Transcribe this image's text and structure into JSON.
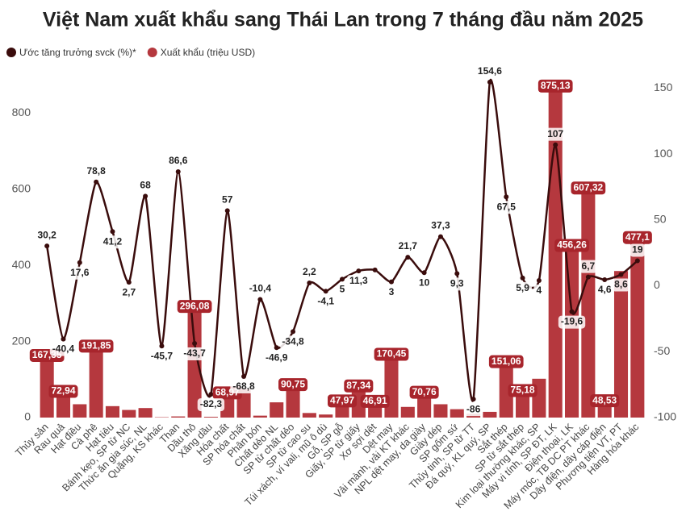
{
  "chart_data": {
    "type": "bar-line",
    "title": "Việt Nam xuất khẩu sang Thái Lan trong 7 tháng đầu năm 2025",
    "categories": [
      "Thủy sản",
      "Rau quả",
      "Hạt điều",
      "Cà phê",
      "Hạt tiêu",
      "Bánh kẹo, SP từ NC",
      "Thức ăn gia súc, NL",
      "Quặng, KS khác",
      "Than",
      "Dầu thô",
      "Xăng dầu",
      "Hóa chất",
      "SP hóa chất",
      "Phân bón",
      "Chất dẻo NL",
      "SP từ chất dẻo",
      "SP từ cao su",
      "Túi xách, ví vali, mũ ô dù",
      "Gỗ, SP gỗ",
      "Giấy, SP từ giấy",
      "Xơ sợi dệt",
      "Dệt may",
      "Vải mành, vải KT khác",
      "NPL dệt may, da giày",
      "Giày dép",
      "SP gốm sứ",
      "Thủy tinh, SP từ TT",
      "Đá quý, KL quý, SP",
      "Sắt thép",
      "SP từ sắt thép",
      "Kim loại thường khác, SP",
      "Máy vi tính, SP ĐT, LK",
      "Điện thoại, LK",
      "Máy móc, TB DC PT khác",
      "Dây điện, dây cáp điện",
      "Phương tiện VT, PT",
      "Hàng hóa khác"
    ],
    "series": [
      {
        "name": "Xuất khẩu (triệu USD)",
        "type": "bar",
        "color": "#b5383e",
        "values": [
          167.35,
          72.94,
          35,
          191.85,
          30,
          20,
          25,
          1,
          3,
          296.08,
          2,
          68.97,
          75,
          5,
          40,
          90.75,
          12,
          8,
          47.97,
          87.34,
          46.91,
          170.45,
          28,
          70.76,
          35,
          22,
          10,
          15,
          151.06,
          75.18,
          102,
          875.13,
          456.26,
          607.32,
          48.53,
          385,
          477.1
        ],
        "value_labels": [
          "167,35",
          "72,94",
          null,
          "191,85",
          null,
          null,
          null,
          null,
          null,
          "296,08",
          null,
          "68,97",
          null,
          null,
          null,
          "90,75",
          null,
          null,
          "47,97",
          "87,34",
          "46,91",
          "170,45",
          null,
          "70,76",
          null,
          null,
          null,
          null,
          "151,06",
          "75,18",
          null,
          "875,13",
          "456,26",
          "607,32",
          "48,53",
          null,
          "477,1"
        ]
      },
      {
        "name": "Ước tăng trưởng svck (%)*",
        "type": "line",
        "axis": "y2",
        "color": "#3a0c0c",
        "values": [
          30.2,
          -40.4,
          17.6,
          78.8,
          41.2,
          2.7,
          68,
          -45.7,
          86.6,
          -43.7,
          -82.3,
          57,
          -68.8,
          -10.4,
          -46.9,
          -34.8,
          2.2,
          -4.1,
          5,
          11.3,
          12,
          3,
          21.7,
          10,
          37.3,
          9.3,
          -86,
          154.6,
          67.5,
          5.9,
          4,
          107,
          -19.6,
          6.7,
          4.6,
          8.6,
          19
        ],
        "value_labels": [
          "30,2",
          "-40,4",
          "17,6",
          "78,8",
          "41,2",
          "2,7",
          "68",
          "-45,7",
          "86,6",
          "-43,7",
          "-82,3",
          "57",
          "-68,8",
          "-10,4",
          "-46,9",
          "-34,8",
          "2,2",
          "-4,1",
          "5",
          "11,3",
          null,
          "3",
          "21,7",
          "10",
          "37,3",
          "9,3",
          "-86",
          "154,6",
          "67,5",
          "5,9",
          "4",
          "107",
          "-19,6",
          "6,7",
          "4,6",
          "8,6",
          "19"
        ]
      }
    ],
    "ylim": [
      0,
      900
    ],
    "yticks": [
      0,
      200,
      400,
      600,
      800
    ],
    "y2lim": [
      -100,
      160
    ],
    "y2ticks": [
      -100,
      -50,
      0,
      50,
      100,
      150
    ],
    "grid": false
  }
}
